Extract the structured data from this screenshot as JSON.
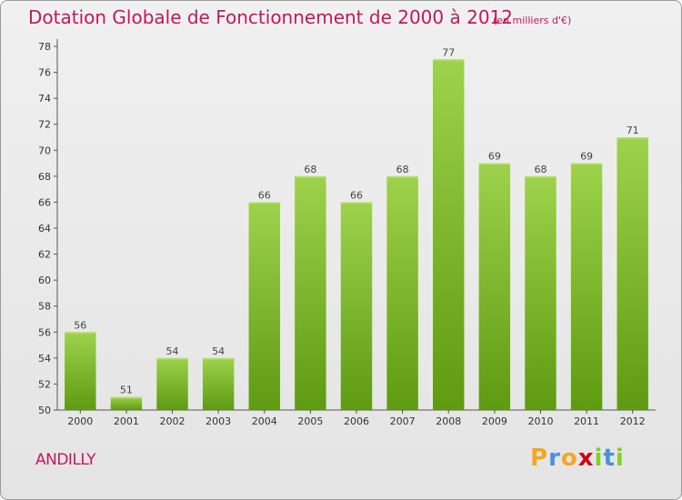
{
  "title": "Dotation Globale de Fonctionnement de 2000 à 2012",
  "unit_label": "(en milliers d'€)",
  "commune": "ANDILLY",
  "logo": {
    "text": "Proxiti",
    "letters": [
      "P",
      "r",
      "o",
      "x",
      "i",
      "t",
      "i"
    ],
    "letter_colors": [
      "#f5a623",
      "#4a90d9",
      "#f5a623",
      "#d0021b",
      "#7ed321",
      "#4a90d9",
      "#7ed321"
    ]
  },
  "colors": {
    "title": "#c2185b",
    "bar_top": "#9ed24c",
    "bar_bottom": "#5e9a12",
    "background": "#eaeaea"
  },
  "chart_data": {
    "type": "bar",
    "title": "Dotation Globale de Fonctionnement de 2000 à 2012",
    "xlabel": "",
    "ylabel": "",
    "categories": [
      "2000",
      "2001",
      "2002",
      "2003",
      "2004",
      "2005",
      "2006",
      "2007",
      "2008",
      "2009",
      "2010",
      "2011",
      "2012"
    ],
    "values": [
      56,
      51,
      54,
      54,
      66,
      68,
      66,
      68,
      77,
      69,
      68,
      69,
      71
    ],
    "ylim": [
      50,
      78
    ],
    "yticks": [
      50,
      52,
      54,
      56,
      58,
      60,
      62,
      64,
      66,
      68,
      70,
      72,
      74,
      76,
      78
    ],
    "grid": false,
    "legend": "none"
  }
}
